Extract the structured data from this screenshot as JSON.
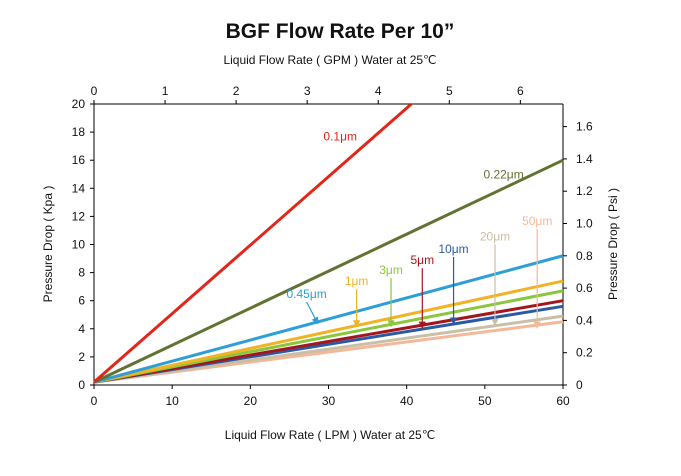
{
  "chart_data": {
    "type": "line",
    "title": "BGF Flow Rate Per 10”",
    "xlabel_bottom": "Liquid Flow Rate ( LPM ) Water at 25℃",
    "xlabel_top": "Liquid Flow Rate ( GPM ) Water at 25℃",
    "ylabel_left": "Pressure Drop ( Kpa )",
    "ylabel_right": "Pressure Drop ( Psi )",
    "x_bottom": {
      "min": 0,
      "max": 60,
      "ticks": [
        0,
        10,
        20,
        30,
        40,
        50,
        60
      ]
    },
    "x_top": {
      "min": 0,
      "max": 6.6,
      "ticks": [
        0,
        1,
        2,
        3,
        4,
        5,
        6
      ]
    },
    "y_left": {
      "min": 0,
      "max": 20,
      "ticks": [
        0,
        2,
        4,
        6,
        8,
        10,
        12,
        14,
        16,
        18,
        20
      ]
    },
    "y_right": {
      "min": 0,
      "max": 1.74,
      "ticks": [
        "0",
        "0.2",
        "0.4",
        "0.6",
        "0.8",
        "1.0",
        "1.2",
        "1.4",
        "1.6"
      ],
      "tick_values": [
        0,
        0.2,
        0.4,
        0.6,
        0.8,
        1.0,
        1.2,
        1.4,
        1.6
      ]
    },
    "grid": false,
    "series": [
      {
        "name": "0.1μm",
        "color": "#e1261c",
        "points": [
          [
            0,
            0.2
          ],
          [
            40.6,
            20
          ]
        ]
      },
      {
        "name": "0.22μm",
        "color": "#617232",
        "points": [
          [
            0,
            0.2
          ],
          [
            60,
            16
          ]
        ]
      },
      {
        "name": "0.45μm",
        "color": "#2e9fd6",
        "points": [
          [
            0,
            0.2
          ],
          [
            60,
            9.2
          ]
        ]
      },
      {
        "name": "1μm",
        "color": "#f0b323",
        "points": [
          [
            0,
            0.2
          ],
          [
            60,
            7.4
          ]
        ]
      },
      {
        "name": "3μm",
        "color": "#8cc63f",
        "points": [
          [
            0,
            0.2
          ],
          [
            60,
            6.7
          ]
        ]
      },
      {
        "name": "5μm",
        "color": "#a4161d",
        "points": [
          [
            0,
            0.2
          ],
          [
            60,
            6.0
          ]
        ]
      },
      {
        "name": "10μm",
        "color": "#2a5aa6",
        "points": [
          [
            0,
            0.2
          ],
          [
            60,
            5.6
          ]
        ]
      },
      {
        "name": "20μm",
        "color": "#c9bfa6",
        "points": [
          [
            0,
            0.2
          ],
          [
            60,
            4.9
          ]
        ]
      },
      {
        "name": "50μm",
        "color": "#f4b898",
        "points": [
          [
            0,
            0.2
          ],
          [
            60,
            4.5
          ]
        ]
      }
    ],
    "annotations": [
      {
        "series": "0.1μm",
        "text": "0.1μm",
        "color": "#e1261c",
        "arrow": false,
        "x": 31.5,
        "y": 17.4
      },
      {
        "series": "0.22μm",
        "text": "0.22μm",
        "color": "#617232",
        "arrow": false,
        "x": 52.4,
        "y": 14.7
      },
      {
        "series": "0.45μm",
        "text": "0.45μm",
        "color": "#2e9fd6",
        "arrow": true,
        "x": 27.2,
        "y": 6.2,
        "tip": [
          28.6,
          4.4
        ]
      },
      {
        "series": "1μm",
        "text": "1μm",
        "color": "#f0b323",
        "arrow": true,
        "x": 33.6,
        "y": 7.1,
        "tip": [
          33.6,
          4.2
        ]
      },
      {
        "series": "3μm",
        "text": "3μm",
        "color": "#8cc63f",
        "arrow": true,
        "x": 38.0,
        "y": 7.9,
        "tip": [
          38.0,
          4.2
        ]
      },
      {
        "series": "5μm",
        "text": "5μm",
        "color": "#a4161d",
        "arrow": true,
        "x": 42.0,
        "y": 8.6,
        "tip": [
          42.0,
          4.1
        ]
      },
      {
        "series": "10μm",
        "text": "10μm",
        "color": "#2a5aa6",
        "arrow": true,
        "x": 46.0,
        "y": 9.4,
        "tip": [
          46.0,
          4.4
        ]
      },
      {
        "series": "20μm",
        "text": "20μm",
        "color": "#c9bfa6",
        "arrow": true,
        "x": 51.3,
        "y": 10.3,
        "tip": [
          51.3,
          4.3
        ]
      },
      {
        "series": "50μm",
        "text": "50μm",
        "color": "#f4b898",
        "arrow": true,
        "x": 56.7,
        "y": 11.4,
        "tip": [
          56.7,
          4.1
        ]
      }
    ]
  }
}
